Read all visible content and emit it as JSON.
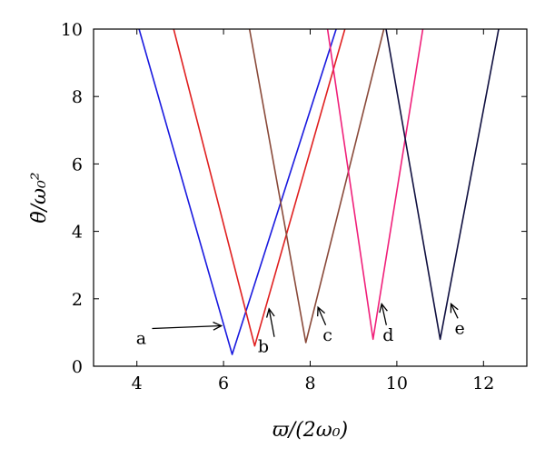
{
  "chart_data": {
    "type": "line",
    "title": "",
    "xlabel": "ϖ/(2ω₀)",
    "ylabel": "θ̇/ω₀²",
    "xlim": [
      3,
      13
    ],
    "ylim": [
      0,
      10
    ],
    "xticks": [
      "4",
      "6",
      "8",
      "10",
      "12"
    ],
    "xtick_values": [
      4,
      6,
      8,
      10,
      12
    ],
    "yticks": [
      "0",
      "2",
      "4",
      "6",
      "8",
      "10"
    ],
    "ytick_values": [
      0,
      2,
      4,
      6,
      8,
      10
    ],
    "grid": false,
    "series": [
      {
        "color": "#1a1adf",
        "x": [
          4.05,
          6.2,
          8.6
        ],
        "y": [
          10,
          0.35,
          10
        ]
      },
      {
        "color": "#e02020",
        "x": [
          4.85,
          6.72,
          8.8
        ],
        "y": [
          10,
          0.6,
          10
        ]
      },
      {
        "color": "#8a4a3a",
        "x": [
          6.6,
          7.9,
          9.7
        ],
        "y": [
          10,
          0.7,
          10
        ]
      },
      {
        "color": "#f0207a",
        "x": [
          8.4,
          9.45,
          10.6
        ],
        "y": [
          10,
          0.8,
          10
        ]
      },
      {
        "color": "#101040",
        "x": [
          9.75,
          11.0,
          12.35
        ],
        "y": [
          10,
          0.8,
          10
        ]
      }
    ],
    "annotations": [
      {
        "text": "a",
        "label_x": 4.1,
        "label_y": 0.85,
        "arrow_to_x": 5.95,
        "arrow_to_y": 1.2
      },
      {
        "text": "b",
        "label_x": 6.92,
        "label_y": 0.6,
        "arrow_to_x": 7.05,
        "arrow_to_y": 1.7
      },
      {
        "text": "c",
        "label_x": 8.4,
        "label_y": 0.95,
        "arrow_to_x": 8.18,
        "arrow_to_y": 1.75
      },
      {
        "text": "d",
        "label_x": 9.8,
        "label_y": 0.95,
        "arrow_to_x": 9.65,
        "arrow_to_y": 1.85
      },
      {
        "text": "e",
        "label_x": 11.45,
        "label_y": 1.15,
        "arrow_to_x": 11.25,
        "arrow_to_y": 1.85
      }
    ]
  }
}
